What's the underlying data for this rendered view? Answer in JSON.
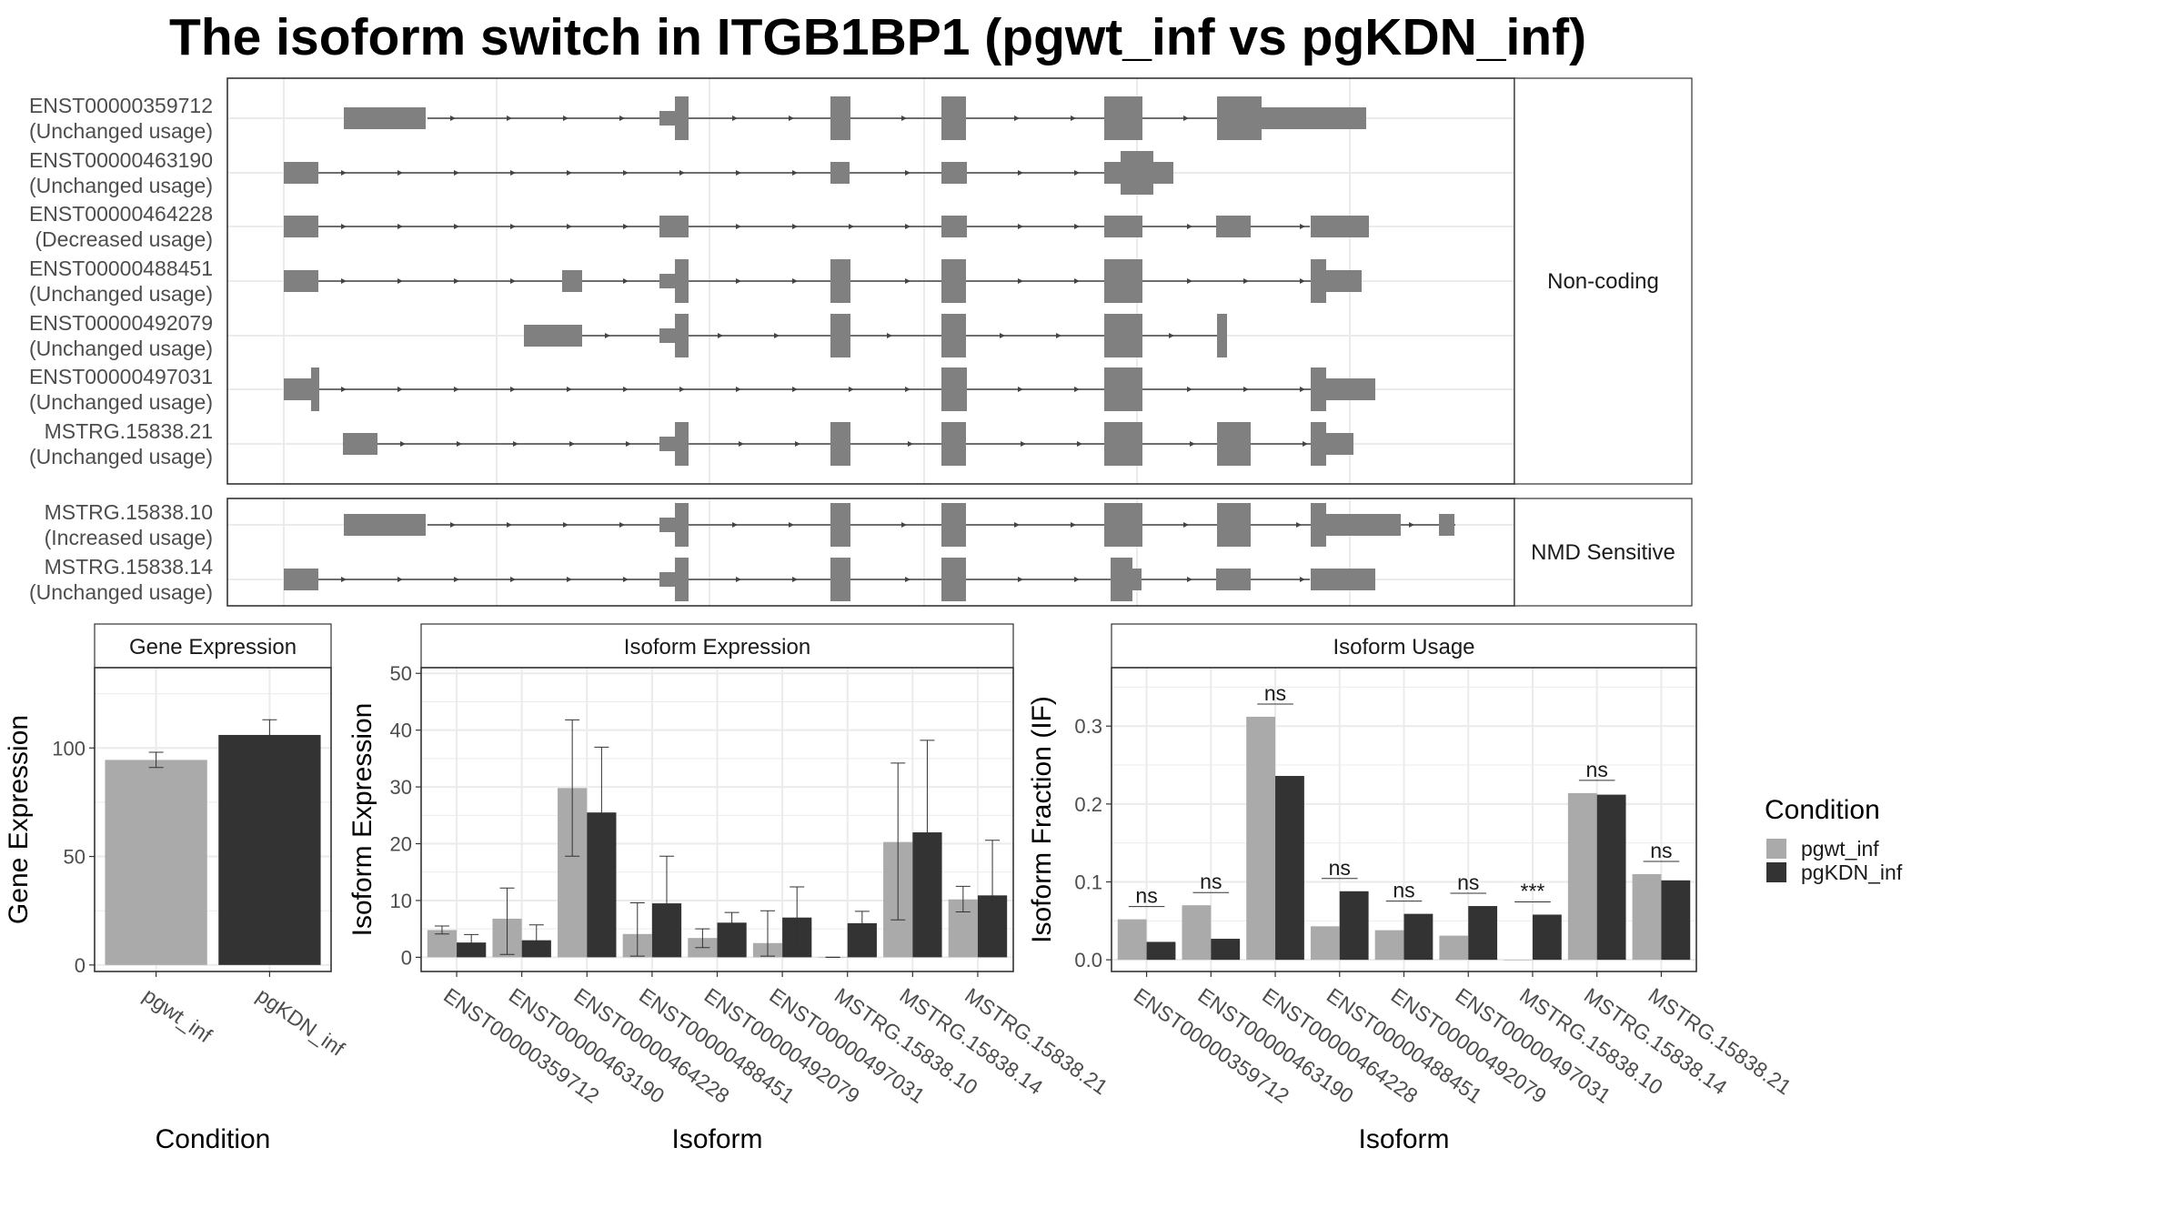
{
  "title": "The isoform switch in ITGB1BP1 (pgwt_inf vs pgKDN_inf)",
  "colors": {
    "exon": "#808080",
    "pgwt_inf": "#aaaaaa",
    "pgKDN_inf": "#333333"
  },
  "chart_data": [
    {
      "type": "gene-structure",
      "name": "transcript-structure",
      "panels": [
        {
          "strip": "Non-coding",
          "transcripts": [
            {
              "id": "ENST00000359712",
              "status": "(Unchanged usage)"
            },
            {
              "id": "ENST00000463190",
              "status": "(Unchanged usage)"
            },
            {
              "id": "ENST00000464228",
              "status": "(Decreased usage)"
            },
            {
              "id": "ENST00000488451",
              "status": "(Unchanged usage)"
            },
            {
              "id": "ENST00000492079",
              "status": "(Unchanged usage)"
            },
            {
              "id": "ENST00000497031",
              "status": "(Unchanged usage)"
            },
            {
              "id": "MSTRG.15838.21",
              "status": "(Unchanged usage)"
            }
          ]
        },
        {
          "strip": "NMD Sensitive",
          "transcripts": [
            {
              "id": "MSTRG.15838.10",
              "status": "(Increased usage)"
            },
            {
              "id": "MSTRG.15838.14",
              "status": "(Unchanged usage)"
            }
          ]
        }
      ]
    },
    {
      "type": "bar",
      "name": "gene-expression",
      "strip": "Gene Expression",
      "xlabel": "Condition",
      "ylabel": "Gene Expression",
      "categories": [
        "pgwt_inf",
        "pgKDN_inf"
      ],
      "values": [
        94.5,
        106
      ],
      "errors": [
        [
          91,
          98
        ],
        [
          99,
          113
        ]
      ],
      "ylim": [
        -3,
        137
      ],
      "yticks": [
        0,
        50,
        100
      ]
    },
    {
      "type": "bar",
      "name": "isoform-expression",
      "strip": "Isoform Expression",
      "xlabel": "Isoform",
      "ylabel": "Isoform Expression",
      "categories": [
        "ENST00000359712",
        "ENST00000463190",
        "ENST00000464228",
        "ENST00000488451",
        "ENST00000492079",
        "ENST00000497031",
        "MSTRG.15838.10",
        "MSTRG.15838.14",
        "MSTRG.15838.21"
      ],
      "series": [
        {
          "name": "pgwt_inf",
          "values": [
            4.8,
            6.8,
            29.8,
            4.1,
            3.4,
            2.5,
            0.0,
            20.3,
            10.2
          ],
          "errors": [
            [
              4.1,
              5.5
            ],
            [
              0.5,
              12.2
            ],
            [
              17.8,
              41.8
            ],
            [
              0.2,
              9.6
            ],
            [
              1.7,
              5.0
            ],
            [
              0.2,
              8.2
            ],
            [
              0.0,
              0.0
            ],
            [
              6.6,
              34.2
            ],
            [
              8.0,
              12.5
            ]
          ]
        },
        {
          "name": "pgKDN_inf",
          "values": [
            2.6,
            3.0,
            25.5,
            9.5,
            6.1,
            7.0,
            6.0,
            22.0,
            10.9
          ],
          "errors": [
            [
              1.3,
              4.0
            ],
            [
              0.3,
              5.7
            ],
            [
              14.0,
              37.0
            ],
            [
              1.2,
              17.8
            ],
            [
              4.3,
              7.9
            ],
            [
              1.5,
              12.4
            ],
            [
              4.1,
              8.1
            ],
            [
              5.7,
              38.2
            ],
            [
              1.2,
              20.6
            ]
          ]
        }
      ],
      "ylim": [
        -2.5,
        51
      ],
      "yticks": [
        0,
        10,
        20,
        30,
        40,
        50
      ]
    },
    {
      "type": "bar",
      "name": "isoform-usage",
      "strip": "Isoform Usage",
      "xlabel": "Isoform",
      "ylabel": "Isoform Fraction (IF)",
      "categories": [
        "ENST00000359712",
        "ENST00000463190",
        "ENST00000464228",
        "ENST00000488451",
        "ENST00000492079",
        "ENST00000497031",
        "MSTRG.15838.10",
        "MSTRG.15838.14",
        "MSTRG.15838.21"
      ],
      "series": [
        {
          "name": "pgwt_inf",
          "values": [
            0.052,
            0.07,
            0.312,
            0.043,
            0.038,
            0.031,
            0.0,
            0.214,
            0.11
          ]
        },
        {
          "name": "pgKDN_inf",
          "values": [
            0.023,
            0.027,
            0.236,
            0.088,
            0.059,
            0.069,
            0.058,
            0.212,
            0.102
          ]
        }
      ],
      "significance": [
        "ns",
        "ns",
        "ns",
        "ns",
        "ns",
        "ns",
        "***",
        "ns",
        "ns"
      ],
      "ylim": [
        -0.015,
        0.375
      ],
      "yticks": [
        "0.0",
        "0.1",
        "0.2",
        "0.3"
      ]
    }
  ],
  "legend": {
    "title": "Condition",
    "entries": [
      "pgwt_inf",
      "pgKDN_inf"
    ]
  }
}
